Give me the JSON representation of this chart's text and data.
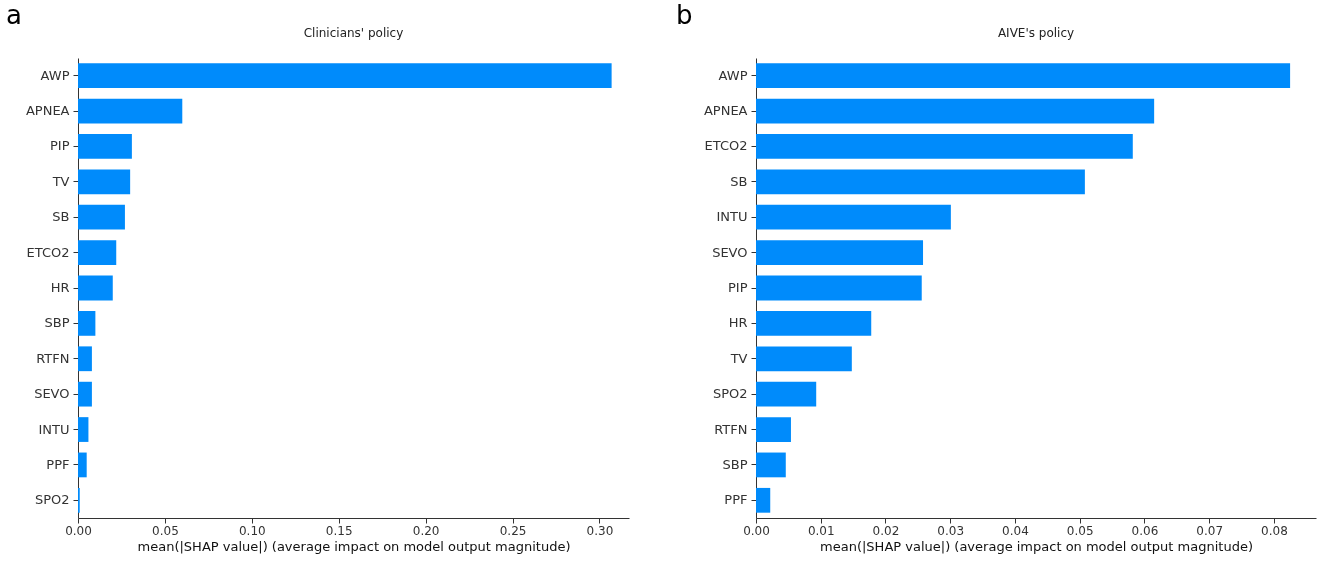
{
  "chart_data": [
    {
      "type": "bar",
      "orientation": "horizontal",
      "title": "Clinicians' policy",
      "xlabel": "mean(|SHAP value|) (average impact on model output magnitude)",
      "annotations": [
        "a"
      ],
      "categories": [
        "AWP",
        "APNEA",
        "PIP",
        "TV",
        "SB",
        "ETCO2",
        "HR",
        "SBP",
        "RTFN",
        "SEVO",
        "INTU",
        "PPF",
        "SPO2"
      ],
      "values": [
        0.307,
        0.06,
        0.031,
        0.03,
        0.027,
        0.022,
        0.02,
        0.01,
        0.008,
        0.008,
        0.006,
        0.005,
        0.001
      ],
      "color": "#008bfb",
      "xlim": [
        0,
        0.317
      ],
      "xticks": [
        {
          "value": 0,
          "label": "0.00"
        },
        {
          "value": 0.05,
          "label": "0.05"
        },
        {
          "value": 0.1,
          "label": "0.10"
        },
        {
          "value": 0.15,
          "label": "0.15"
        },
        {
          "value": 0.2,
          "label": "0.20"
        },
        {
          "value": 0.25,
          "label": "0.25"
        },
        {
          "value": 0.3,
          "label": "0.30"
        }
      ]
    },
    {
      "type": "bar",
      "orientation": "horizontal",
      "title": "AIVE's policy",
      "xlabel": "mean(|SHAP value|) (average impact on model output magnitude)",
      "annotations": [
        "b"
      ],
      "categories": [
        "AWP",
        "APNEA",
        "ETCO2",
        "SB",
        "INTU",
        "SEVO",
        "PIP",
        "HR",
        "TV",
        "SPO2",
        "RTFN",
        "SBP",
        "PPF"
      ],
      "values": [
        0.0825,
        0.0615,
        0.0582,
        0.0508,
        0.0301,
        0.0258,
        0.0256,
        0.0178,
        0.0148,
        0.0093,
        0.0054,
        0.0046,
        0.0022
      ],
      "color": "#008bfb",
      "xlim": [
        0,
        0.0865
      ],
      "xticks": [
        {
          "value": 0,
          "label": "0.00"
        },
        {
          "value": 0.01,
          "label": "0.01"
        },
        {
          "value": 0.02,
          "label": "0.02"
        },
        {
          "value": 0.03,
          "label": "0.03"
        },
        {
          "value": 0.04,
          "label": "0.04"
        },
        {
          "value": 0.05,
          "label": "0.05"
        },
        {
          "value": 0.06,
          "label": "0.06"
        },
        {
          "value": 0.07,
          "label": "0.07"
        },
        {
          "value": 0.08,
          "label": "0.08"
        }
      ]
    }
  ]
}
